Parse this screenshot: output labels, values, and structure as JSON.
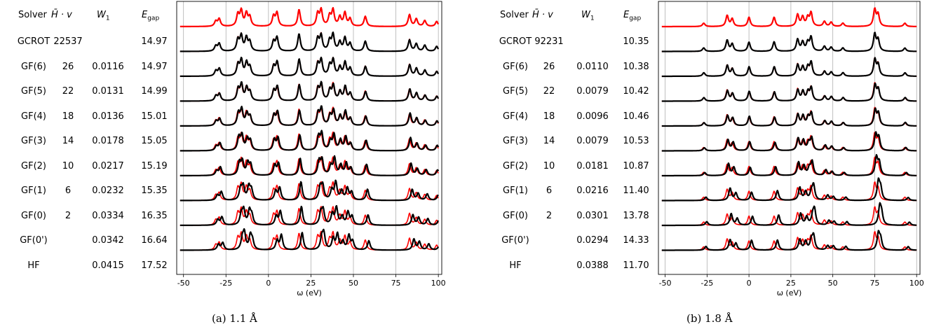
{
  "panels": [
    {
      "id": "a",
      "caption": "(a)  1.1 Å",
      "headers": {
        "solver": "Solver",
        "hv_main": "H̄",
        "hv_suffix": " · v",
        "w_main": "W",
        "w_sub": "1",
        "e_main": "E",
        "e_sub": "gap"
      },
      "rows": [
        {
          "solver": "GCROT",
          "hv": "22537",
          "w1": "",
          "egap": "14.97"
        },
        {
          "solver": "GF(6)",
          "hv": "26",
          "w1": "0.0116",
          "egap": "14.97"
        },
        {
          "solver": "GF(5)",
          "hv": "22",
          "w1": "0.0131",
          "egap": "14.99"
        },
        {
          "solver": "GF(4)",
          "hv": "18",
          "w1": "0.0136",
          "egap": "15.01"
        },
        {
          "solver": "GF(3)",
          "hv": "14",
          "w1": "0.0178",
          "egap": "15.05"
        },
        {
          "solver": "GF(2)",
          "hv": "10",
          "w1": "0.0217",
          "egap": "15.19"
        },
        {
          "solver": "GF(1)",
          "hv": "6",
          "w1": "0.0232",
          "egap": "15.35"
        },
        {
          "solver": "GF(0)",
          "hv": "2",
          "w1": "0.0334",
          "egap": "16.35"
        },
        {
          "solver": "GF(0')",
          "hv": "",
          "w1": "0.0342",
          "egap": "16.64"
        },
        {
          "solver": "HF",
          "hv": "",
          "w1": "0.0415",
          "egap": "17.52"
        }
      ]
    },
    {
      "id": "b",
      "caption": "(b)  1.8 Å",
      "headers": {
        "solver": "Solver",
        "hv_main": "H̄",
        "hv_suffix": " · v",
        "w_main": "W",
        "w_sub": "1",
        "e_main": "E",
        "e_sub": "gap"
      },
      "rows": [
        {
          "solver": "GCROT",
          "hv": "92231",
          "w1": "",
          "egap": "10.35"
        },
        {
          "solver": "GF(6)",
          "hv": "26",
          "w1": "0.0110",
          "egap": "10.38"
        },
        {
          "solver": "GF(5)",
          "hv": "22",
          "w1": "0.0079",
          "egap": "10.42"
        },
        {
          "solver": "GF(4)",
          "hv": "18",
          "w1": "0.0096",
          "egap": "10.46"
        },
        {
          "solver": "GF(3)",
          "hv": "14",
          "w1": "0.0079",
          "egap": "10.53"
        },
        {
          "solver": "GF(2)",
          "hv": "10",
          "w1": "0.0181",
          "egap": "10.87"
        },
        {
          "solver": "GF(1)",
          "hv": "6",
          "w1": "0.0216",
          "egap": "11.40"
        },
        {
          "solver": "GF(0)",
          "hv": "2",
          "w1": "0.0301",
          "egap": "13.78"
        },
        {
          "solver": "GF(0')",
          "hv": "",
          "w1": "0.0294",
          "egap": "14.33"
        },
        {
          "solver": "HF",
          "hv": "",
          "w1": "0.0388",
          "egap": "11.70"
        }
      ]
    }
  ],
  "chart_data": [
    {
      "type": "line",
      "panel": "a",
      "xlabel": "ω (eV)",
      "xlim": [
        -54,
        102
      ],
      "xticks": [
        -50,
        -25,
        0,
        25,
        50,
        75,
        100
      ],
      "grid": "vertical",
      "colors": {
        "reference": "#ff0000",
        "approx": "#000000",
        "grid": "#b0b0b0"
      },
      "reference_peaks": [
        {
          "x": -31,
          "h": 0.3
        },
        {
          "x": -29,
          "h": 0.45
        },
        {
          "x": -18,
          "h": 0.7
        },
        {
          "x": -16,
          "h": 0.9
        },
        {
          "x": -13,
          "h": 0.75
        },
        {
          "x": -11,
          "h": 0.55
        },
        {
          "x": 3,
          "h": 0.6
        },
        {
          "x": 5,
          "h": 0.8
        },
        {
          "x": 18,
          "h": 1.0
        },
        {
          "x": 29,
          "h": 0.75
        },
        {
          "x": 31,
          "h": 0.95
        },
        {
          "x": 36,
          "h": 0.6
        },
        {
          "x": 38,
          "h": 0.95
        },
        {
          "x": 42,
          "h": 0.55
        },
        {
          "x": 45,
          "h": 0.8
        },
        {
          "x": 48,
          "h": 0.45
        },
        {
          "x": 57,
          "h": 0.6
        },
        {
          "x": 83,
          "h": 0.7
        },
        {
          "x": 87,
          "h": 0.45
        },
        {
          "x": 92,
          "h": 0.35
        },
        {
          "x": 99,
          "h": 0.3
        }
      ],
      "rows": [
        "GCROT",
        "GF(6)",
        "GF(5)",
        "GF(4)",
        "GF(3)",
        "GF(2)",
        "GF(1)",
        "GF(0)",
        "GF(0')",
        "HF"
      ],
      "approx_shifts": [
        0,
        0,
        0.1,
        0.2,
        0.35,
        0.6,
        0.9,
        1.6,
        2.0,
        2.6
      ]
    },
    {
      "type": "line",
      "panel": "b",
      "xlabel": "ω (eV)",
      "xlim": [
        -54,
        102
      ],
      "xticks": [
        -50,
        -25,
        0,
        25,
        50,
        75,
        100
      ],
      "grid": "vertical",
      "colors": {
        "reference": "#ff0000",
        "approx": "#000000",
        "grid": "#b0b0b0"
      },
      "reference_peaks": [
        {
          "x": -27,
          "h": 0.2
        },
        {
          "x": -13,
          "h": 0.65
        },
        {
          "x": -10,
          "h": 0.45
        },
        {
          "x": 0,
          "h": 0.55
        },
        {
          "x": 15,
          "h": 0.55
        },
        {
          "x": 29,
          "h": 0.7
        },
        {
          "x": 32,
          "h": 0.55
        },
        {
          "x": 35,
          "h": 0.5
        },
        {
          "x": 37,
          "h": 0.8
        },
        {
          "x": 45,
          "h": 0.3
        },
        {
          "x": 49,
          "h": 0.25
        },
        {
          "x": 56,
          "h": 0.2
        },
        {
          "x": 75,
          "h": 1.0
        },
        {
          "x": 77,
          "h": 0.7
        },
        {
          "x": 93,
          "h": 0.2
        }
      ],
      "rows": [
        "GCROT",
        "GF(6)",
        "GF(5)",
        "GF(4)",
        "GF(3)",
        "GF(2)",
        "GF(1)",
        "GF(0)",
        "GF(0')",
        "HF"
      ],
      "approx_shifts": [
        0,
        0,
        0.1,
        0.2,
        0.3,
        0.6,
        1.0,
        2.2,
        3.0,
        2.2
      ]
    }
  ]
}
